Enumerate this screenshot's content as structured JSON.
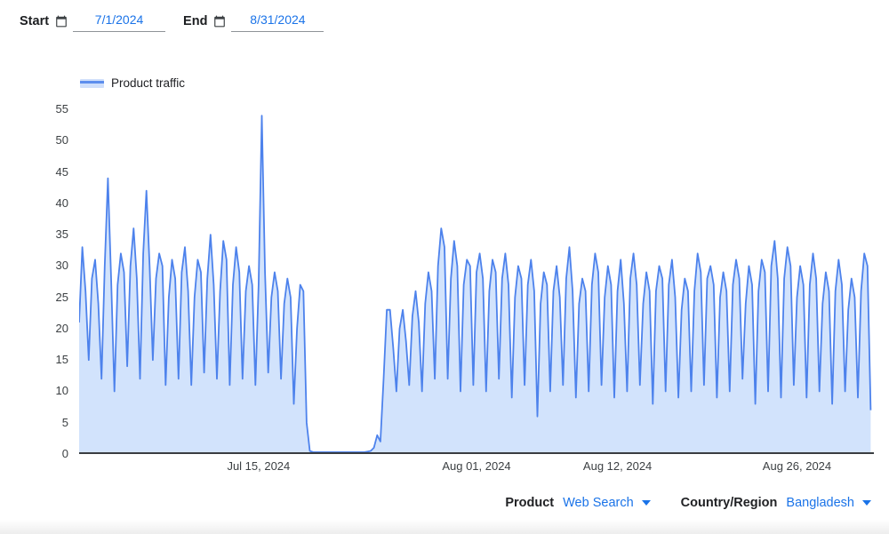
{
  "date_controls": {
    "start_label": "Start",
    "start_value": "7/1/2024",
    "end_label": "End",
    "end_value": "8/31/2024"
  },
  "legend": {
    "label": "Product traffic"
  },
  "filters": {
    "product_label": "Product",
    "product_value": "Web Search",
    "country_label": "Country/Region",
    "country_value": "Bangladesh"
  },
  "colors": {
    "accent_blue": "#1a73e8",
    "line": "#4d82ec",
    "fill": "#d2e3fc",
    "axis_text": "#3c4043",
    "axis_line": "#3a3d41"
  },
  "chart_data": {
    "type": "area",
    "title": "Product traffic",
    "xlabel": "",
    "ylabel": "",
    "ylim": [
      0,
      55
    ],
    "y_ticks": [
      0,
      5,
      10,
      15,
      20,
      25,
      30,
      35,
      40,
      45,
      50,
      55
    ],
    "x_span_days": 62,
    "x_ticks": [
      {
        "label": "Jul 15, 2024",
        "day": 14
      },
      {
        "label": "Aug 01, 2024",
        "day": 31
      },
      {
        "label": "Aug 12, 2024",
        "day": 42
      },
      {
        "label": "Aug 26, 2024",
        "day": 56
      }
    ],
    "grid": false,
    "legend_position": "top-left",
    "line_color": "#4d82ec",
    "fill_color": "#d2e3fc",
    "series": [
      {
        "name": "Product traffic",
        "start_date": "7/1/2024",
        "end_date": "8/31/2024",
        "points_per_day": 4,
        "values": [
          21,
          33,
          26,
          15,
          28,
          31,
          24,
          12,
          30,
          44,
          28,
          10,
          27,
          32,
          29,
          14,
          30,
          36,
          28,
          12,
          32,
          42,
          30,
          15,
          28,
          32,
          30,
          11,
          25,
          31,
          28,
          12,
          29,
          33,
          26,
          11,
          25,
          31,
          29,
          13,
          28,
          35,
          27,
          12,
          26,
          34,
          31,
          11,
          27,
          33,
          29,
          12,
          26,
          30,
          27,
          11,
          27,
          54,
          29,
          13,
          25,
          29,
          26,
          12,
          24,
          28,
          25,
          8,
          20,
          27,
          26,
          5,
          0.5,
          0.3,
          0.3,
          0.3,
          0.3,
          0.3,
          0.3,
          0.3,
          0.3,
          0.3,
          0.3,
          0.3,
          0.3,
          0.3,
          0.3,
          0.3,
          0.3,
          0.3,
          0.4,
          0.5,
          1,
          3,
          2,
          12,
          23,
          23,
          17,
          10,
          20,
          23,
          18,
          11,
          22,
          26,
          21,
          10,
          24,
          29,
          26,
          12,
          30,
          36,
          33,
          12,
          28,
          34,
          30,
          10,
          27,
          31,
          30,
          11,
          29,
          32,
          28,
          10,
          26,
          31,
          29,
          12,
          28,
          32,
          27,
          9,
          25,
          30,
          28,
          11,
          27,
          31,
          26,
          6,
          24,
          29,
          27,
          10,
          26,
          30,
          25,
          11,
          28,
          33,
          26,
          9,
          24,
          28,
          26,
          10,
          27,
          32,
          29,
          11,
          25,
          30,
          27,
          9,
          26,
          31,
          24,
          10,
          28,
          32,
          27,
          11,
          24,
          29,
          26,
          8,
          26,
          30,
          28,
          10,
          27,
          31,
          25,
          9,
          23,
          28,
          26,
          10,
          26,
          32,
          29,
          11,
          28,
          30,
          27,
          9,
          25,
          29,
          26,
          10,
          27,
          31,
          28,
          12,
          24,
          30,
          27,
          8,
          26,
          31,
          29,
          10,
          30,
          34,
          28,
          9,
          28,
          33,
          30,
          11,
          25,
          30,
          27,
          9,
          27,
          32,
          28,
          10,
          24,
          29,
          26,
          8,
          26,
          31,
          27,
          10,
          23,
          28,
          25,
          9,
          26,
          32,
          30,
          7
        ]
      }
    ]
  }
}
